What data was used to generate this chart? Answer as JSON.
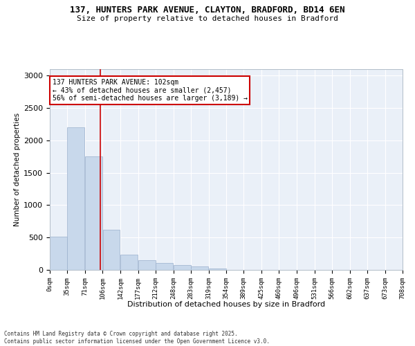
{
  "title_line1": "137, HUNTERS PARK AVENUE, CLAYTON, BRADFORD, BD14 6EN",
  "title_line2": "Size of property relative to detached houses in Bradford",
  "xlabel": "Distribution of detached houses by size in Bradford",
  "ylabel": "Number of detached properties",
  "bar_color": "#c8d8eb",
  "bar_edge_color": "#9ab0cc",
  "background_color": "#eaf0f8",
  "grid_color": "#ffffff",
  "vline_x": 102,
  "vline_color": "#cc0000",
  "annotation_title": "137 HUNTERS PARK AVENUE: 102sqm",
  "annotation_line1": "← 43% of detached houses are smaller (2,457)",
  "annotation_line2": "56% of semi-detached houses are larger (3,189) →",
  "annotation_box_color": "#cc0000",
  "footnote1": "Contains HM Land Registry data © Crown copyright and database right 2025.",
  "footnote2": "Contains public sector information licensed under the Open Government Licence v3.0.",
  "bin_edges": [
    0,
    35,
    71,
    106,
    142,
    177,
    212,
    248,
    283,
    319,
    354,
    389,
    425,
    460,
    496,
    531,
    566,
    602,
    637,
    673,
    708
  ],
  "bin_labels": [
    "0sqm",
    "35sqm",
    "71sqm",
    "106sqm",
    "142sqm",
    "177sqm",
    "212sqm",
    "248sqm",
    "283sqm",
    "319sqm",
    "354sqm",
    "389sqm",
    "425sqm",
    "460sqm",
    "496sqm",
    "531sqm",
    "566sqm",
    "602sqm",
    "637sqm",
    "673sqm",
    "708sqm"
  ],
  "bar_heights": [
    510,
    2200,
    1750,
    620,
    240,
    145,
    110,
    80,
    55,
    20,
    5,
    5,
    5,
    5,
    0,
    0,
    0,
    0,
    0,
    0
  ],
  "ylim": [
    0,
    3100
  ],
  "yticks": [
    0,
    500,
    1000,
    1500,
    2000,
    2500,
    3000
  ]
}
